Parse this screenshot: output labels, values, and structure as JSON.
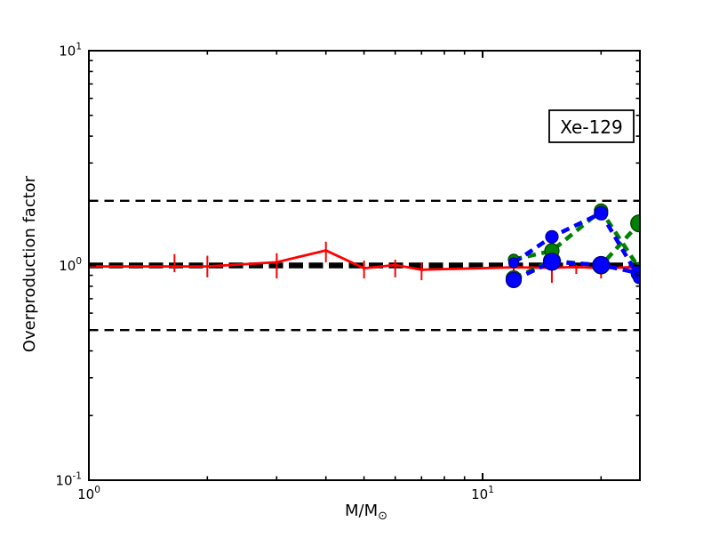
{
  "chart_data": {
    "type": "line",
    "isotope_label": "Xe-129",
    "xlabel_main": "M/M",
    "xlabel_sub": "⊙",
    "ylabel": "Overproduction factor",
    "xscale": "log",
    "yscale": "log",
    "xlim": [
      1,
      25.1
    ],
    "ylim": [
      0.1,
      10
    ],
    "background": "#ffffff",
    "axis_color": "#000000",
    "grid": false,
    "legend": false,
    "x_major_ticks": [
      {
        "value": 1,
        "base": "10",
        "exp": "0"
      },
      {
        "value": 10,
        "base": "10",
        "exp": "1"
      }
    ],
    "x_minor_ticks": [
      2,
      3,
      4,
      5,
      6,
      7,
      8,
      9,
      20
    ],
    "y_major_ticks": [
      {
        "value": 0.1,
        "base": "10",
        "exp": "-1"
      },
      {
        "value": 1,
        "base": "10",
        "exp": "0"
      },
      {
        "value": 10,
        "base": "10",
        "exp": "1"
      }
    ],
    "y_minor_ticks": [
      0.2,
      0.3,
      0.4,
      0.5,
      0.6,
      0.7,
      0.8,
      0.9,
      2,
      3,
      4,
      5,
      6,
      7,
      8,
      9
    ],
    "reference_lines": [
      {
        "y": 2,
        "style": "thin-dashed",
        "color": "#000000"
      },
      {
        "y": 0.5,
        "style": "thin-dashed",
        "color": "#000000"
      },
      {
        "y": 1,
        "style": "thick-dashed",
        "color": "#000000"
      }
    ],
    "series": [
      {
        "name": "agb-models-red",
        "color": "#ff0000",
        "line": "solid",
        "marker": "none",
        "x": [
          1,
          1.65,
          2,
          3,
          4,
          5,
          6,
          7,
          12,
          15,
          17.3,
          20,
          25.1
        ],
        "y": [
          0.99,
          0.99,
          0.99,
          1.035,
          1.175,
          0.97,
          1.005,
          0.955,
          0.98,
          0.975,
          0.985,
          0.97,
          0.985
        ],
        "error_bars": [
          {
            "x": 1.65,
            "lo": 0.93,
            "hi": 1.13
          },
          {
            "x": 2,
            "lo": 0.88,
            "hi": 1.11
          },
          {
            "x": 3,
            "lo": 0.87,
            "hi": 1.14
          },
          {
            "x": 4,
            "lo": 1.035,
            "hi": 1.29
          },
          {
            "x": 5,
            "lo": 0.87,
            "hi": 1.054
          },
          {
            "x": 6,
            "lo": 0.88,
            "hi": 1.064
          },
          {
            "x": 7,
            "lo": 0.854,
            "hi": 1.034
          },
          {
            "x": 12,
            "lo": 0.88,
            "hi": 1.084
          },
          {
            "x": 15,
            "lo": 0.83,
            "hi": 1.044
          },
          {
            "x": 17.3,
            "lo": 0.913,
            "hi": 1.005
          },
          {
            "x": 20,
            "lo": 0.87,
            "hi": 0.977
          }
        ]
      },
      {
        "name": "massive-green-large",
        "color": "#008000",
        "marker_edge": "#004000",
        "line": "dashed",
        "marker": "circle",
        "x": [
          12,
          15,
          20,
          25
        ],
        "y": [
          0.87,
          1.05,
          1.0,
          1.57
        ],
        "marker_radii": [
          8.5,
          9.5,
          9.5,
          9.5
        ]
      },
      {
        "name": "massive-green-small",
        "color": "#008000",
        "marker_edge": "#004000",
        "line": "dashed",
        "marker": "circle",
        "x": [
          12,
          15,
          20,
          25
        ],
        "y": [
          1.065,
          1.17,
          1.8,
          0.97
        ],
        "marker_radii": [
          6,
          8,
          7.5,
          6.5
        ]
      },
      {
        "name": "massive-blue-large",
        "color": "#0000ff",
        "marker_edge": "#00008b",
        "line": "dashed",
        "marker": "circle",
        "x": [
          12,
          15,
          20,
          25
        ],
        "y": [
          0.855,
          1.04,
          1.005,
          0.92
        ],
        "marker_radii": [
          8.5,
          9.5,
          9.5,
          9
        ]
      },
      {
        "name": "massive-blue-small",
        "color": "#0000ff",
        "marker_edge": "#00008b",
        "line": "dashed",
        "marker": "circle",
        "x": [
          12,
          15,
          20,
          25
        ],
        "y": [
          1.03,
          1.36,
          1.75,
          0.875
        ],
        "marker_radii": [
          5.5,
          7,
          7.5,
          6.5
        ]
      }
    ]
  }
}
